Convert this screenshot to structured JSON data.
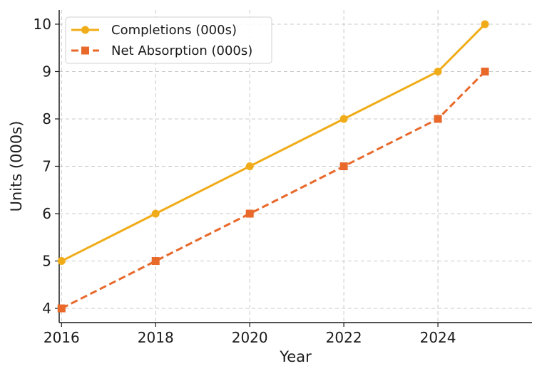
{
  "chart_data": {
    "type": "line",
    "title": "",
    "xlabel": "Year",
    "ylabel": "Units (000s)",
    "x": [
      2016,
      2018,
      2020,
      2022,
      2024,
      2025
    ],
    "xticks": [
      2016,
      2018,
      2020,
      2022,
      2024
    ],
    "yticks": [
      4,
      5,
      6,
      7,
      8,
      9,
      10
    ],
    "xlim": [
      2015.95,
      2026.0
    ],
    "ylim": [
      3.7,
      10.3
    ],
    "grid": true,
    "legend_position": "top-left",
    "series": [
      {
        "name": "Completions (000s)",
        "values": [
          5,
          6,
          7,
          8,
          9,
          10
        ],
        "color": "#f0ac18",
        "marker": "circle",
        "line_style": "solid"
      },
      {
        "name": "Net Absorption (000s)",
        "values": [
          4,
          5,
          6,
          7,
          8,
          9
        ],
        "color": "#e8692a",
        "marker": "square",
        "line_style": "dashed"
      }
    ]
  }
}
